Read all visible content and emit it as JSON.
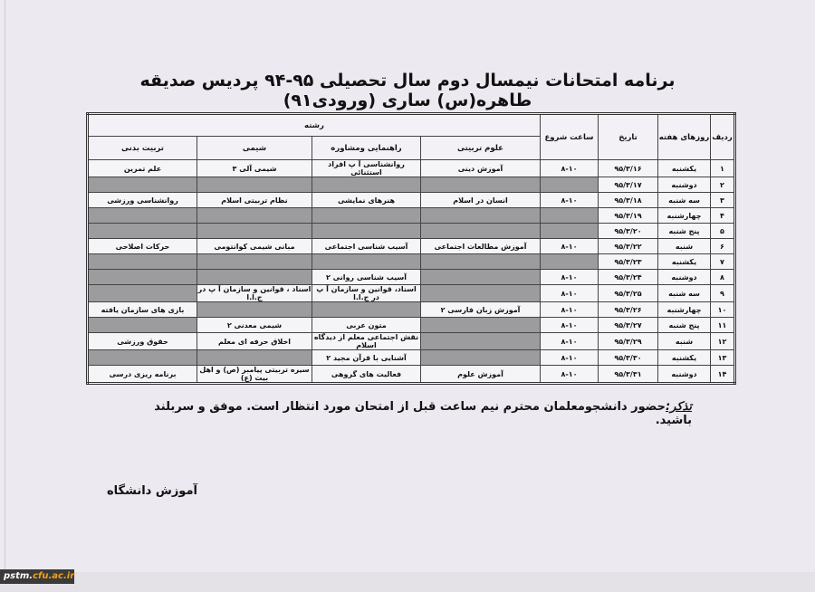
{
  "title": "برنامه امتحانات نیمسال دوم سال تحصیلی ۹۵-۹۴ پردیس صدیقه طاهره(س) ساری (ورودی۹۱)",
  "table": {
    "headers": {
      "row_num": "ردیف",
      "weekday": "روزهای هفته",
      "date": "تاریخ",
      "start_time": "ساعت شروع",
      "major": "رشته",
      "majors": [
        "علوم تربیتی",
        "راهنمایی ومشاوره",
        "شیمی",
        "تربیت بدنی"
      ]
    },
    "rows": [
      {
        "n": "۱",
        "day": "یکشنبه",
        "date": "۹۵/۳/۱۶",
        "time": "۸-۱۰",
        "c": [
          "آموزش دینی",
          "روانشناسی آ پ افراد استثنائی",
          "شیمی آلی ۳",
          "علم تمرین"
        ]
      },
      {
        "n": "۲",
        "day": "دوشنبه",
        "date": "۹۵/۳/۱۷",
        "time": "",
        "c": [
          "",
          "",
          "",
          ""
        ]
      },
      {
        "n": "۳",
        "day": "سه شنبه",
        "date": "۹۵/۳/۱۸",
        "time": "۸-۱۰",
        "c": [
          "انسان در اسلام",
          "هنرهای نمایشی",
          "نظام تربیتی اسلام",
          "روانشناسی ورزشی"
        ]
      },
      {
        "n": "۴",
        "day": "چهارشنبه",
        "date": "۹۵/۳/۱۹",
        "time": "",
        "c": [
          "",
          "",
          "",
          ""
        ]
      },
      {
        "n": "۵",
        "day": "پنج شنبه",
        "date": "۹۵/۳/۲۰",
        "time": "",
        "c": [
          "",
          "",
          "",
          ""
        ]
      },
      {
        "n": "۶",
        "day": "شنبه",
        "date": "۹۵/۳/۲۲",
        "time": "۸-۱۰",
        "c": [
          "آموزش مطالعات اجتماعی",
          "آسیب شناسی اجتماعی",
          "مبانی شیمی کوانتومی",
          "حرکات اصلاحی"
        ]
      },
      {
        "n": "۷",
        "day": "یکشنبه",
        "date": "۹۵/۳/۲۳",
        "time": "",
        "c": [
          "",
          "",
          "",
          ""
        ]
      },
      {
        "n": "۸",
        "day": "دوشنبه",
        "date": "۹۵/۳/۲۴",
        "time": "۸-۱۰",
        "c": [
          "",
          "آسیب شناسی روانی ۲",
          "",
          ""
        ]
      },
      {
        "n": "۹",
        "day": "سه شنبه",
        "date": "۹۵/۳/۲۵",
        "time": "۸-۱۰",
        "c": [
          "",
          "اسناد، قوانین و سازمان آ پ در ج.ا.ا",
          "اسناد ، قوانین و سازمان آ پ در ج.ا.ا",
          ""
        ]
      },
      {
        "n": "۱۰",
        "day": "چهارشنبه",
        "date": "۹۵/۳/۲۶",
        "time": "۸-۱۰",
        "c": [
          "آموزش زبان فارسی ۲",
          "",
          "",
          "بازی های سازمان یافته"
        ]
      },
      {
        "n": "۱۱",
        "day": "پنج شنبه",
        "date": "۹۵/۳/۲۷",
        "time": "۸-۱۰",
        "c": [
          "",
          "متون عربی",
          "شیمی معدنی ۲",
          ""
        ]
      },
      {
        "n": "۱۲",
        "day": "شنبه",
        "date": "۹۵/۳/۲۹",
        "time": "۸-۱۰",
        "c": [
          "",
          "نقش اجتماعی معلم از دیدگاه اسلام",
          "اخلاق حرفه ای معلم",
          "حقوق ورزشی"
        ]
      },
      {
        "n": "۱۳",
        "day": "یکشنبه",
        "date": "۹۵/۳/۳۰",
        "time": "۸-۱۰",
        "c": [
          "",
          "آشنایی با قرآن مجید ۲",
          "",
          ""
        ]
      },
      {
        "n": "۱۴",
        "day": "دوشنبه",
        "date": "۹۵/۳/۳۱",
        "time": "۸-۱۰",
        "c": [
          "آموزش علوم",
          "فعالیت های گروهی",
          "سیره تربیتی پیامبر (ص) و اهل بیت (ع)",
          "برنامه ریزی درسی"
        ]
      }
    ]
  },
  "note": {
    "label": "تذکر:",
    "text": "حضور دانشجومعلمان محترم نیم ساعت قبل از امتحان مورد انتظار است. موفق و سربلند باشید."
  },
  "signature": "آموزش دانشگاه",
  "watermark": {
    "prefix": "pstm.",
    "accent": "cfu.ac.ir"
  },
  "colors": {
    "empty_cell": "#9c9c9f",
    "paper": "#ece9f0"
  }
}
